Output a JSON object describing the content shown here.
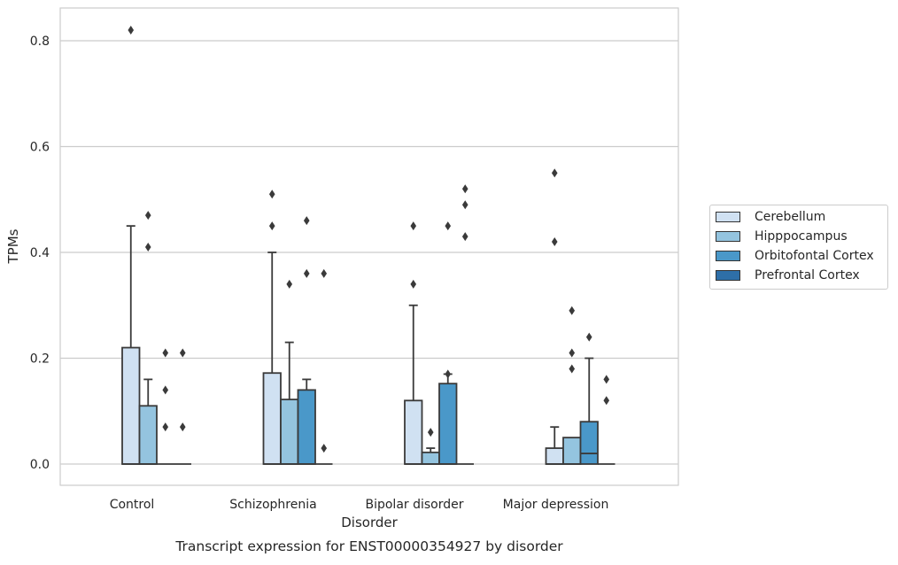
{
  "chart_data": {
    "type": "bar",
    "caption": "Transcript expression for ENST00000354927 by disorder",
    "xlabel": "Disorder",
    "ylabel": "TPMs",
    "ylim": [
      -0.04,
      0.862
    ],
    "yticks": [
      0.0,
      0.2,
      0.4,
      0.6,
      0.8
    ],
    "ytick_labels": [
      "0.0",
      "0.2",
      "0.4",
      "0.6",
      "0.8"
    ],
    "grid": "horizontal",
    "legend_position": "right",
    "categories": [
      "Control",
      "Schizophrenia",
      "Bipolar disorder",
      "Major depression"
    ],
    "series": [
      {
        "name": "Cerebellum",
        "color": "#d0e1f2",
        "values": [
          0.22,
          0.172,
          0.12,
          0.03
        ],
        "whisker_top": [
          0.45,
          0.4,
          0.3,
          0.07
        ],
        "medians": [
          0.0,
          0.0,
          0.0,
          0.0
        ],
        "outliers": [
          [
            0.82
          ],
          [
            0.51,
            0.45
          ],
          [
            0.45,
            0.34
          ],
          [
            0.55,
            0.42
          ]
        ]
      },
      {
        "name": "Hipppocampus",
        "color": "#94c4df",
        "values": [
          0.11,
          0.122,
          0.022,
          0.05
        ],
        "whisker_top": [
          0.16,
          0.23,
          0.03,
          0.05
        ],
        "medians": [
          0.0,
          0.0,
          0.0,
          0.0
        ],
        "outliers": [
          [
            0.47,
            0.41
          ],
          [
            0.34
          ],
          [
            0.06
          ],
          [
            0.29,
            0.21,
            0.18
          ]
        ]
      },
      {
        "name": "Orbitofontal Cortex",
        "color": "#4a98c9",
        "values": [
          0.0,
          0.14,
          0.152,
          0.08
        ],
        "whisker_top": [
          0.0,
          0.16,
          0.17,
          0.2
        ],
        "medians": [
          0.0,
          0.0,
          0.0,
          0.02
        ],
        "outliers": [
          [
            0.21,
            0.14,
            0.07
          ],
          [
            0.46,
            0.36
          ],
          [
            0.45,
            0.17
          ],
          [
            0.24
          ]
        ]
      },
      {
        "name": "Prefrontal Cortex",
        "color": "#2e6fa8",
        "values": [
          0.0,
          0.0,
          0.0,
          0.0
        ],
        "whisker_top": [
          0.0,
          0.0,
          0.0,
          0.0
        ],
        "medians": [
          0.0,
          0.0,
          0.0,
          0.0
        ],
        "outliers": [
          [
            0.21,
            0.07
          ],
          [
            0.36,
            0.03
          ],
          [
            0.52,
            0.49,
            0.43
          ],
          [
            0.16,
            0.12
          ]
        ]
      }
    ]
  }
}
